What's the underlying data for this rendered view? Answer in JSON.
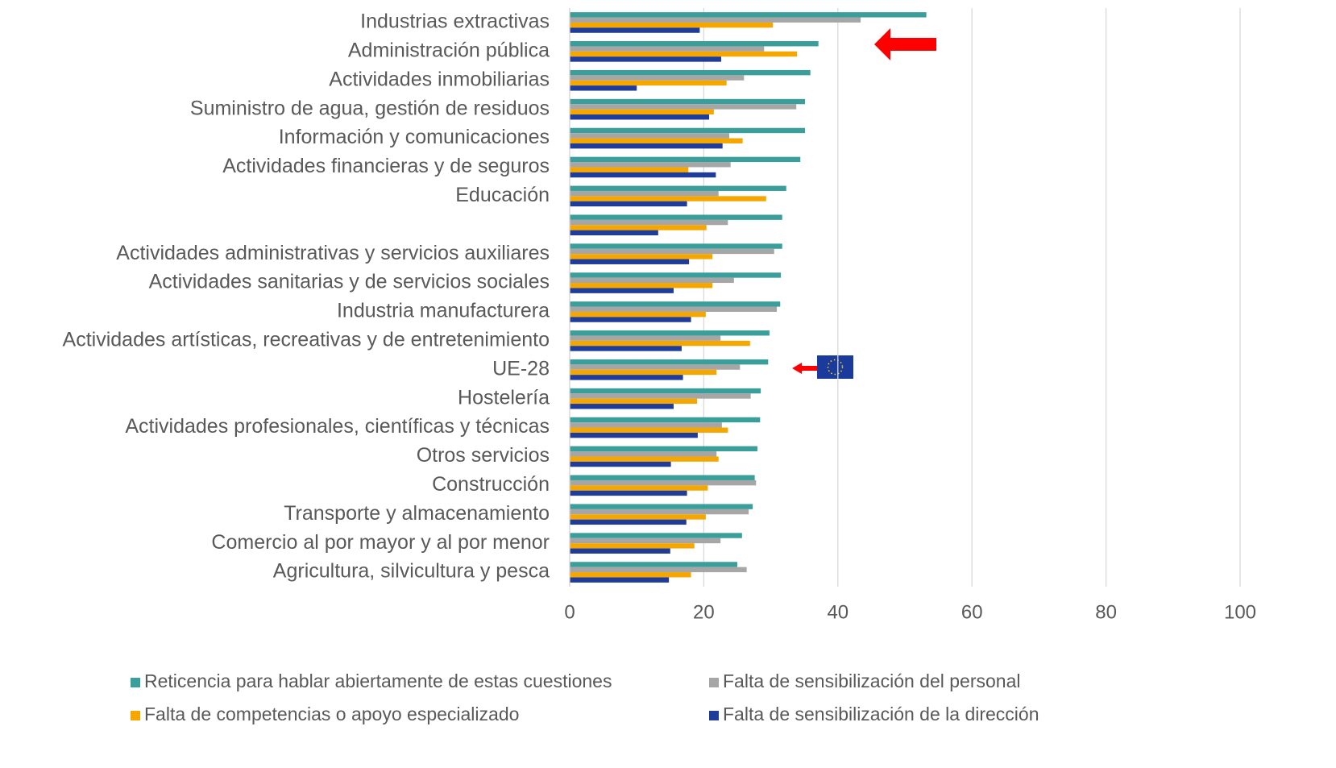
{
  "chart_data": {
    "type": "hbar",
    "categories": [
      "Industrias extractivas",
      "Administración pública",
      "Actividades inmobiliarias",
      "Suministro de agua, gestión de residuos",
      "Información y comunicaciones",
      "Actividades financieras y de seguros",
      "Educación",
      null,
      "Actividades administrativas y servicios auxiliares",
      "Actividades sanitarias y de servicios sociales",
      "Industria manufacturera",
      "Actividades artísticas, recreativas y de entretenimiento",
      "UE-28",
      "Hostelería",
      "Actividades profesionales, científicas y técnicas ",
      "Otros servicios",
      "Construcción",
      "Transporte y almacenamiento",
      "Comercio al por mayor y al por menor",
      "Agricultura, silvicultura y pesca"
    ],
    "series": [
      {
        "name": "Reticencia para hablar abiertamente de estas cuestiones",
        "color": "#3a9e9a",
        "values": [
          53.2,
          37.1,
          35.9,
          35.1,
          35.1,
          34.4,
          32.3,
          31.7,
          31.7,
          31.5,
          31.4,
          29.8,
          29.6,
          28.5,
          28.4,
          28.0,
          27.6,
          27.3,
          25.7,
          25.0
        ]
      },
      {
        "name": "Falta de sensibilización del personal",
        "color": "#a6a6a6",
        "values": [
          43.4,
          29.0,
          26.0,
          33.8,
          23.8,
          24.0,
          22.2,
          23.6,
          30.5,
          24.5,
          30.9,
          22.5,
          25.4,
          27.0,
          22.7,
          21.9,
          27.8,
          26.7,
          22.5,
          26.4
        ]
      },
      {
        "name": "Falta de competencias o apoyo especializado",
        "color": "#f5a700",
        "values": [
          30.3,
          33.9,
          23.4,
          21.5,
          25.8,
          17.7,
          29.3,
          20.4,
          21.3,
          21.3,
          20.3,
          26.9,
          21.9,
          19.0,
          23.6,
          22.2,
          20.6,
          20.3,
          18.6,
          18.1
        ]
      },
      {
        "name": "Falta de sensibilización de la dirección",
        "color": "#1f3c99",
        "values": [
          19.4,
          22.6,
          10.0,
          20.8,
          22.8,
          21.8,
          17.5,
          13.2,
          17.8,
          15.5,
          18.1,
          16.7,
          16.9,
          15.5,
          19.1,
          15.1,
          17.5,
          17.4,
          15.0,
          14.8
        ]
      }
    ],
    "xlim": [
      0,
      100
    ],
    "xticks": [
      0,
      20,
      40,
      60,
      80,
      100
    ],
    "grid": true,
    "legend": "bottom"
  }
}
